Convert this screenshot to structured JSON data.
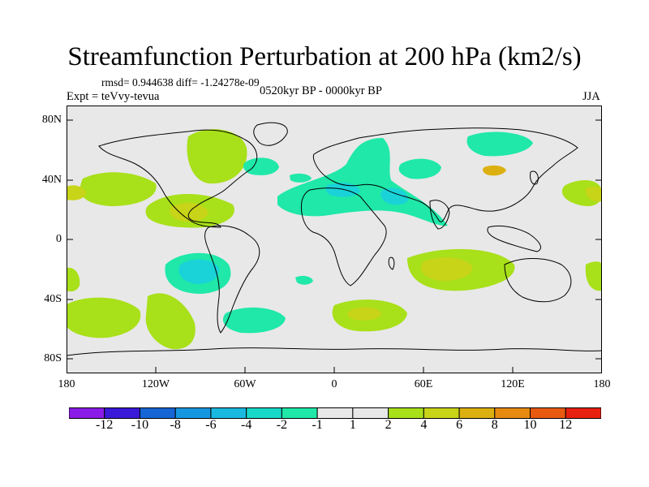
{
  "header": {
    "title": "Streamfunction Perturbation at 200 hPa (km2/s)",
    "stats": "rmsd= 0.944638 diff= -1.24278e-09",
    "experiment": "Expt = teVvy-tevua",
    "period": "0520kyr BP - 0000kyr BP",
    "season": "JJA"
  },
  "map": {
    "y_labels": [
      "80N",
      "40N",
      "0",
      "40S",
      "80S"
    ],
    "x_labels": [
      "180",
      "120W",
      "60W",
      "0",
      "60E",
      "120E",
      "180"
    ]
  },
  "colorbar": {
    "labels": [
      "-12",
      "-10",
      "-8",
      "-6",
      "-4",
      "-2",
      "-1",
      "1",
      "2",
      "4",
      "6",
      "8",
      "10",
      "12"
    ],
    "colors": [
      "#8a1be8",
      "#3a1ad8",
      "#1565d4",
      "#1597e0",
      "#19b9e0",
      "#18d8c8",
      "#1fe8a8",
      "#e8e8e8",
      "#a8e01a",
      "#c8d418",
      "#dcb010",
      "#e88a10",
      "#e85a10",
      "#e82010"
    ]
  }
}
